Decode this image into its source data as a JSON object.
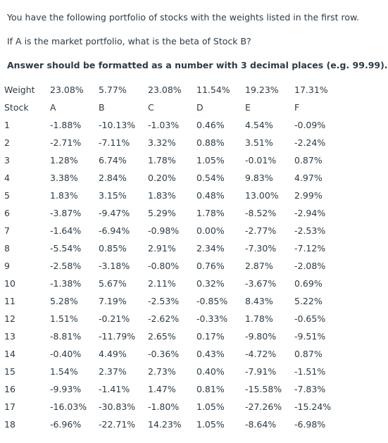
{
  "question": {
    "line1": "You have the following portfolio of stocks with the weights listed in the first row.",
    "line2": "If A is the market portfolio, what is the beta of Stock B?",
    "line3": "Answer should be formatted as a number with 3 decimal places (e.g. 99.99)."
  },
  "table": {
    "weight_label": "Weight",
    "weights": [
      "23.08%",
      "5.77%",
      "23.08%",
      "11.54%",
      "19.23%",
      "17.31%"
    ],
    "stock_label": "Stock",
    "stocks": [
      "A",
      "B",
      "C",
      "D",
      "E",
      "F"
    ],
    "rows": [
      {
        "n": "1",
        "values": [
          "-1.88%",
          "-10.13%",
          "-1.03%",
          "0.46%",
          "4.54%",
          "-0.09%"
        ]
      },
      {
        "n": "2",
        "values": [
          "-2.71%",
          "-7.11%",
          "3.32%",
          "0.88%",
          "3.51%",
          "-2.24%"
        ]
      },
      {
        "n": "3",
        "values": [
          "1.28%",
          "6.74%",
          "1.78%",
          "1.05%",
          "-0.01%",
          "0.87%"
        ]
      },
      {
        "n": "4",
        "values": [
          "3.38%",
          "2.84%",
          "0.20%",
          "0.54%",
          "9.83%",
          "4.97%"
        ]
      },
      {
        "n": "5",
        "values": [
          "1.83%",
          "3.15%",
          "1.83%",
          "0.48%",
          "13.00%",
          "2.99%"
        ]
      },
      {
        "n": "6",
        "values": [
          "-3.87%",
          "-9.47%",
          "5.29%",
          "1.78%",
          "-8.52%",
          "-2.94%"
        ]
      },
      {
        "n": "7",
        "values": [
          "-1.64%",
          "-6.94%",
          "-0.98%",
          "0.00%",
          "-2.77%",
          "-2.53%"
        ]
      },
      {
        "n": "8",
        "values": [
          "-5.54%",
          "0.85%",
          "2.91%",
          "2.34%",
          "-7.30%",
          "-7.12%"
        ]
      },
      {
        "n": "9",
        "values": [
          "-2.58%",
          "-3.18%",
          "-0.80%",
          "0.76%",
          "2.87%",
          "-2.08%"
        ]
      },
      {
        "n": "10",
        "values": [
          "-1.38%",
          "5.67%",
          "2.11%",
          "0.32%",
          "-3.67%",
          "0.69%"
        ]
      },
      {
        "n": "11",
        "values": [
          "5.28%",
          "7.19%",
          "-2.53%",
          "-0.85%",
          "8.43%",
          "5.22%"
        ]
      },
      {
        "n": "12",
        "values": [
          "1.51%",
          "-0.21%",
          "-2.62%",
          "-0.33%",
          "1.78%",
          "-0.65%"
        ]
      },
      {
        "n": "13",
        "values": [
          "-8.81%",
          "-11.79%",
          "2.65%",
          "0.17%",
          "-9.80%",
          "-9.51%"
        ]
      },
      {
        "n": "14",
        "values": [
          "-0.40%",
          "4.49%",
          "-0.36%",
          "0.43%",
          "-4.72%",
          "0.87%"
        ]
      },
      {
        "n": "15",
        "values": [
          "1.54%",
          "2.37%",
          "2.73%",
          "0.40%",
          "-7.91%",
          "-1.51%"
        ]
      },
      {
        "n": "16",
        "values": [
          "-9.93%",
          "-1.41%",
          "1.47%",
          "0.81%",
          "-15.58%",
          "-7.83%"
        ]
      },
      {
        "n": "17",
        "values": [
          "-16.03%",
          "-30.83%",
          "-1.80%",
          "1.05%",
          "-27.26%",
          "-15.24%"
        ]
      },
      {
        "n": "18",
        "values": [
          "-6.96%",
          "-22.71%",
          "14.23%",
          "1.05%",
          "-8.64%",
          "-6.98%"
        ]
      }
    ]
  }
}
